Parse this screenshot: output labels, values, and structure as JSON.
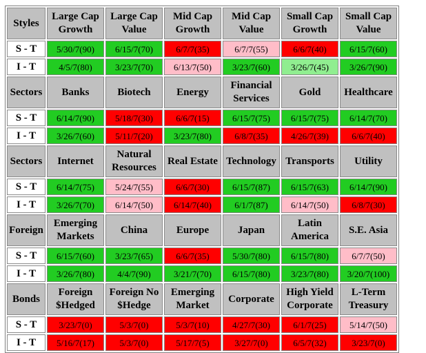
{
  "colors": {
    "green": "#22cc22",
    "red": "#ff0000",
    "pink": "#ffbdc8",
    "light_green": "#90ee90",
    "header_gray": "#c0c0c0"
  },
  "sections": [
    {
      "name": "Styles",
      "columns": [
        "Large Cap Growth",
        "Large Cap Value",
        "Mid Cap Growth",
        "Mid Cap Value",
        "Small Cap Growth",
        "Small Cap Value"
      ],
      "rows": [
        {
          "label": "S - T",
          "cells": [
            {
              "v": "5/30/7(90)",
              "c": "g"
            },
            {
              "v": "6/15/7(70)",
              "c": "g"
            },
            {
              "v": "6/7/7(35)",
              "c": "r"
            },
            {
              "v": "6/7/7(55)",
              "c": "p"
            },
            {
              "v": "6/6/7(40)",
              "c": "r"
            },
            {
              "v": "6/15/7(60)",
              "c": "g"
            }
          ]
        },
        {
          "label": "I - T",
          "cells": [
            {
              "v": "4/5/7(80)",
              "c": "g"
            },
            {
              "v": "3/23/7(70)",
              "c": "g"
            },
            {
              "v": "6/13/7(50)",
              "c": "p"
            },
            {
              "v": "3/23/7(60)",
              "c": "g"
            },
            {
              "v": "3/26/7(45)",
              "c": "lg"
            },
            {
              "v": "3/26/7(90)",
              "c": "g"
            }
          ]
        }
      ]
    },
    {
      "name": "Sectors",
      "columns": [
        "Banks",
        "Biotech",
        "Energy",
        "Financial Services",
        "Gold",
        "Healthcare"
      ],
      "rows": [
        {
          "label": "S - T",
          "cells": [
            {
              "v": "6/14/7(90)",
              "c": "g"
            },
            {
              "v": "5/18/7(30)",
              "c": "r"
            },
            {
              "v": "6/6/7(15)",
              "c": "r"
            },
            {
              "v": "6/15/7(75)",
              "c": "g"
            },
            {
              "v": "6/15/7(75)",
              "c": "g"
            },
            {
              "v": "6/14/7(70)",
              "c": "g"
            }
          ]
        },
        {
          "label": "I - T",
          "cells": [
            {
              "v": "3/26/7(60)",
              "c": "g"
            },
            {
              "v": "5/11/7(20)",
              "c": "r"
            },
            {
              "v": "3/23/7(80)",
              "c": "g"
            },
            {
              "v": "6/8/7(35)",
              "c": "r"
            },
            {
              "v": "4/26/7(39)",
              "c": "r"
            },
            {
              "v": "6/6/7(40)",
              "c": "r"
            }
          ]
        }
      ]
    },
    {
      "name": "Sectors",
      "columns": [
        "Internet",
        "Natural Resources",
        "Real Estate",
        "Technology",
        "Transports",
        "Utility"
      ],
      "rows": [
        {
          "label": "S - T",
          "cells": [
            {
              "v": "6/14/7(75)",
              "c": "g"
            },
            {
              "v": "5/24/7(55)",
              "c": "p"
            },
            {
              "v": "6/6/7(30)",
              "c": "r"
            },
            {
              "v": "6/15/7(87)",
              "c": "g"
            },
            {
              "v": "6/15/7(63)",
              "c": "g"
            },
            {
              "v": "6/14/7(90)",
              "c": "g"
            }
          ]
        },
        {
          "label": "I - T",
          "cells": [
            {
              "v": "3/26/7(70)",
              "c": "g"
            },
            {
              "v": "6/14/7(50)",
              "c": "p"
            },
            {
              "v": "6/14/7(40)",
              "c": "r"
            },
            {
              "v": "6/1/7(87)",
              "c": "g"
            },
            {
              "v": "6/14/7(50)",
              "c": "p"
            },
            {
              "v": "6/8/7(30)",
              "c": "r"
            }
          ]
        }
      ]
    },
    {
      "name": "Foreign",
      "columns": [
        "Emerging Markets",
        "China",
        "Europe",
        "Japan",
        "Latin America",
        "S.E. Asia"
      ],
      "rows": [
        {
          "label": "S - T",
          "cells": [
            {
              "v": "6/15/7(60)",
              "c": "g"
            },
            {
              "v": "3/23/7(65)",
              "c": "g"
            },
            {
              "v": "6/6/7(35)",
              "c": "r"
            },
            {
              "v": "5/30/7(80)",
              "c": "g"
            },
            {
              "v": "6/15/7(80)",
              "c": "g"
            },
            {
              "v": "6/7/7(50)",
              "c": "p"
            }
          ]
        },
        {
          "label": "I - T",
          "cells": [
            {
              "v": "3/26/7(80)",
              "c": "g"
            },
            {
              "v": "4/4/7(90)",
              "c": "g"
            },
            {
              "v": "3/21/7(70)",
              "c": "g"
            },
            {
              "v": "6/15/7(80)",
              "c": "g"
            },
            {
              "v": "3/23/7(80)",
              "c": "g"
            },
            {
              "v": "3/20/7(100)",
              "c": "g"
            }
          ]
        }
      ]
    },
    {
      "name": "Bonds",
      "columns": [
        "Foreign $Hedged",
        "Foreign No $Hedge",
        "Emerging Market",
        "Corporate",
        "High Yield Corporate",
        "L-Term Treasury"
      ],
      "rows": [
        {
          "label": "S - T",
          "cells": [
            {
              "v": "3/23/7(0)",
              "c": "r"
            },
            {
              "v": "5/3/7(0)",
              "c": "r"
            },
            {
              "v": "5/3/7(10)",
              "c": "r"
            },
            {
              "v": "4/27/7(30)",
              "c": "r"
            },
            {
              "v": "6/1/7(25)",
              "c": "r"
            },
            {
              "v": "5/14/7(50)",
              "c": "p"
            }
          ]
        },
        {
          "label": "I - T",
          "cells": [
            {
              "v": "5/16/7(17)",
              "c": "r"
            },
            {
              "v": "5/3/7(0)",
              "c": "r"
            },
            {
              "v": "5/17/7(5)",
              "c": "r"
            },
            {
              "v": "3/27/7(0)",
              "c": "r"
            },
            {
              "v": "6/5/7(32)",
              "c": "r"
            },
            {
              "v": "3/23/7(0)",
              "c": "r"
            }
          ]
        }
      ]
    }
  ]
}
